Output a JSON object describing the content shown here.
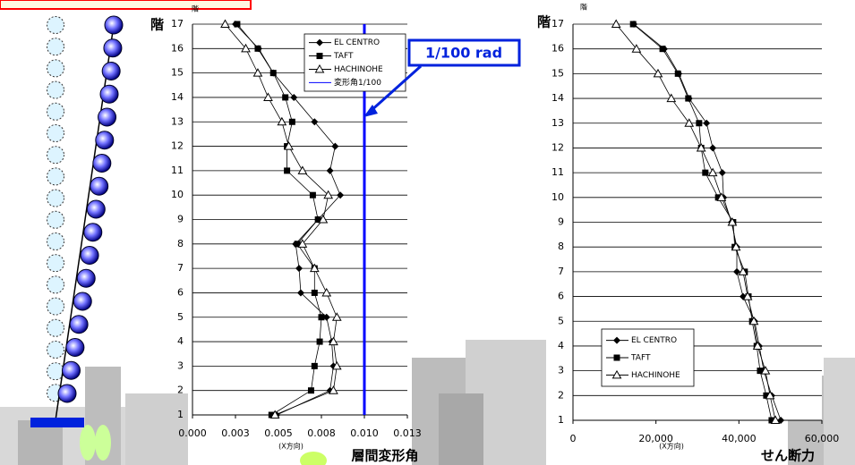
{
  "chart_data": [
    {
      "type": "line",
      "orientation": "horizontal",
      "ylabel": "階",
      "ylabel_top": "階",
      "xlabel": "層間変形角",
      "xunit_label": "(X方向)",
      "annotations": [
        {
          "text": "1/100 rad"
        }
      ],
      "categories": [
        1,
        2,
        3,
        4,
        5,
        6,
        7,
        8,
        9,
        10,
        11,
        12,
        13,
        14,
        15,
        16,
        17
      ],
      "xlim": [
        0,
        0.0125
      ],
      "xticks": [
        {
          "value": 0,
          "label": "0.000"
        },
        {
          "value": 0.0025,
          "label": "0.003"
        },
        {
          "value": 0.005,
          "label": "0.005"
        },
        {
          "value": 0.0075,
          "label": "0.008"
        },
        {
          "value": 0.01,
          "label": "0.010"
        },
        {
          "value": 0.0125,
          "label": "0.013"
        }
      ],
      "grid": true,
      "series": [
        {
          "name": "EL CENTRO",
          "color": "#000000",
          "marker": "diamond",
          "values": [
            0.0049,
            0.008,
            0.0082,
            0.0081,
            0.0078,
            0.0063,
            0.0062,
            0.006,
            0.0073,
            0.0086,
            0.008,
            0.0083,
            0.0071,
            0.0059,
            0.0047,
            0.00385,
            0.0025
          ]
        },
        {
          "name": "TAFT",
          "color": "#000000",
          "marker": "square",
          "values": [
            0.0046,
            0.0069,
            0.0071,
            0.0074,
            0.0075,
            0.0071,
            0.0071,
            0.0061,
            0.0073,
            0.007,
            0.0055,
            0.0055,
            0.0058,
            0.0054,
            0.0047,
            0.0038,
            0.0026
          ]
        },
        {
          "name": "HACHINOHE",
          "color": "#000000",
          "marker": "triangle-open",
          "values": [
            0.0048,
            0.0082,
            0.0084,
            0.0082,
            0.0084,
            0.0078,
            0.0071,
            0.0064,
            0.0076,
            0.0079,
            0.0064,
            0.0056,
            0.0052,
            0.0044,
            0.0038,
            0.0031,
            0.0019
          ]
        },
        {
          "name": "変形角1/100",
          "color": "#0000ff",
          "marker": "none",
          "values": [
            0.01,
            0.01,
            0.01,
            0.01,
            0.01,
            0.01,
            0.01,
            0.01,
            0.01,
            0.01,
            0.01,
            0.01,
            0.01,
            0.01,
            0.01,
            0.01,
            0.01
          ]
        }
      ]
    },
    {
      "type": "line",
      "orientation": "horizontal",
      "ylabel": "階",
      "ylabel_top": "階",
      "xlabel": "せん断力",
      "xunit_label": "(X方向)",
      "categories": [
        1,
        2,
        3,
        4,
        5,
        6,
        7,
        8,
        9,
        10,
        11,
        12,
        13,
        14,
        15,
        16,
        17
      ],
      "xlim": [
        0,
        60000
      ],
      "xticks": [
        0,
        {
          "value": 20000,
          "label": "20,000"
        },
        {
          "value": 40000,
          "label": "40,000"
        },
        {
          "value": 60000,
          "label": "60,000"
        }
      ],
      "grid": true,
      "series": [
        {
          "name": "EL CENTRO",
          "color": "#000000",
          "marker": "diamond",
          "values": [
            50100,
            47900,
            46000,
            44900,
            43800,
            41000,
            39500,
            39500,
            38200,
            36300,
            36000,
            33700,
            32200,
            28000,
            25500,
            22000,
            14680
          ]
        },
        {
          "name": "TAFT",
          "color": "#000000",
          "marker": "square",
          "values": [
            47900,
            46600,
            45100,
            44300,
            43200,
            42300,
            41400,
            39000,
            38600,
            35000,
            31900,
            30900,
            30400,
            27800,
            25300,
            21600,
            14500
          ]
        },
        {
          "name": "HACHINOHE",
          "color": "#000000",
          "marker": "triangle-open",
          "values": [
            48800,
            47500,
            46400,
            44500,
            43600,
            42100,
            41000,
            39300,
            38400,
            35800,
            33700,
            30900,
            28000,
            23700,
            20500,
            15300,
            10400
          ]
        }
      ]
    }
  ]
}
